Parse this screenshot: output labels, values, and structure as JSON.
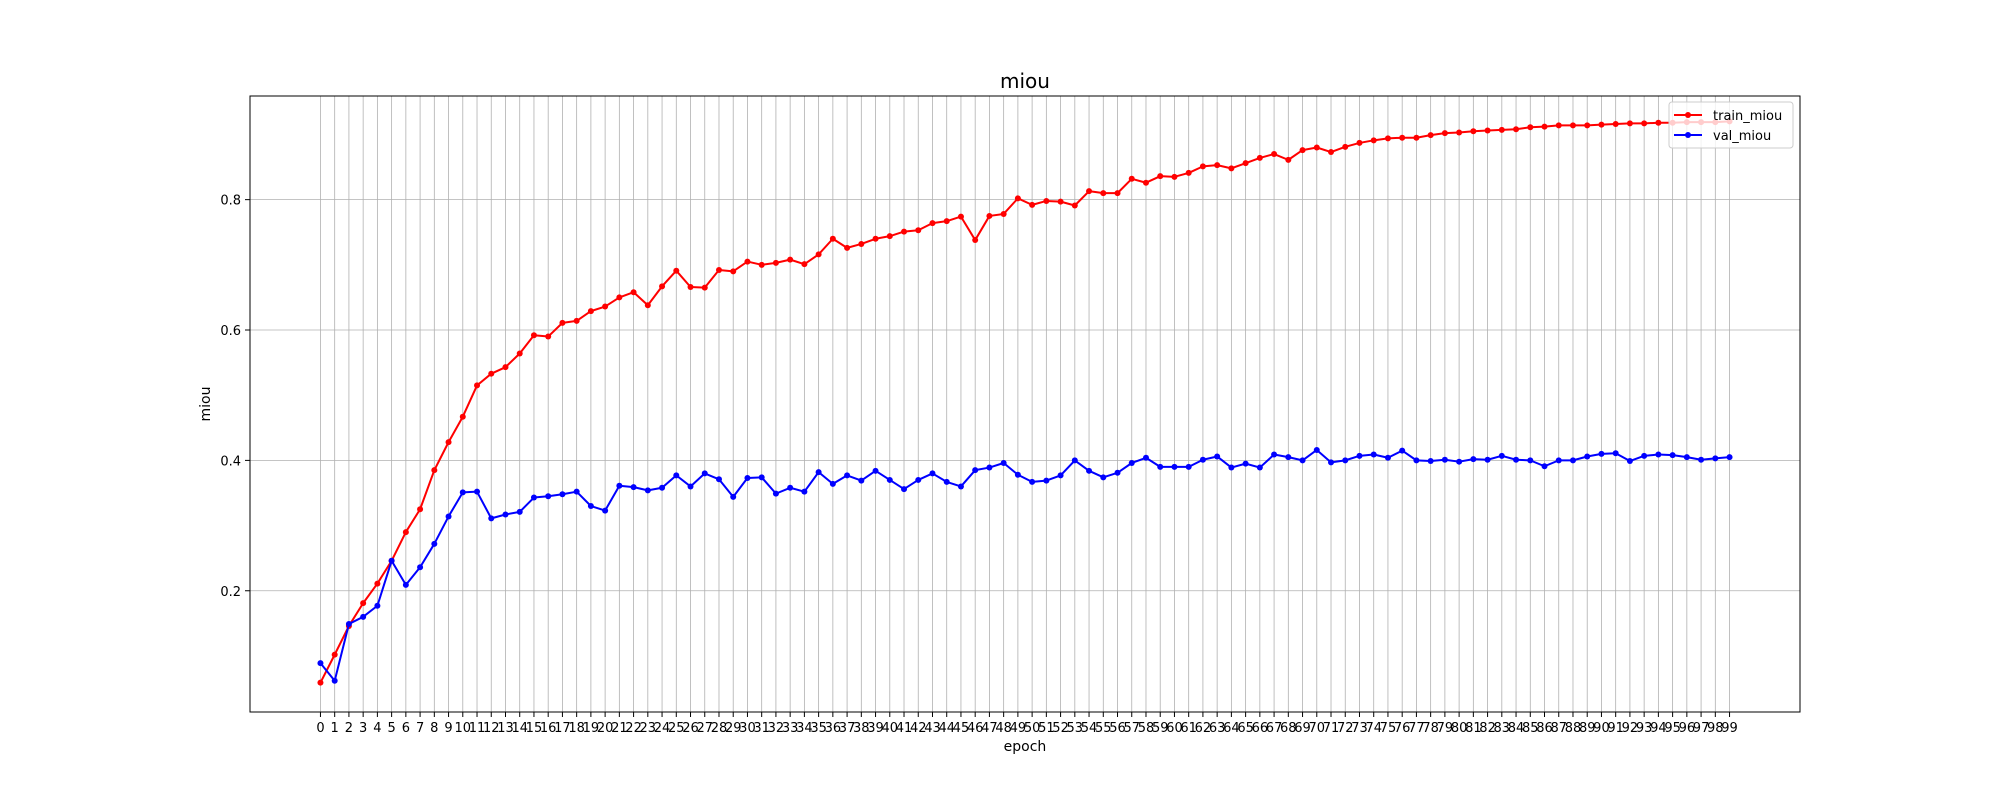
{
  "chart_data": {
    "type": "line",
    "title": "miou",
    "xlabel": "epoch",
    "ylabel": "miou",
    "x": [
      0,
      1,
      2,
      3,
      4,
      5,
      6,
      7,
      8,
      9,
      10,
      11,
      12,
      13,
      14,
      15,
      16,
      17,
      18,
      19,
      20,
      21,
      22,
      23,
      24,
      25,
      26,
      27,
      28,
      29,
      30,
      31,
      32,
      33,
      34,
      35,
      36,
      37,
      38,
      39,
      40,
      41,
      42,
      43,
      44,
      45,
      46,
      47,
      48,
      49,
      50,
      51,
      52,
      53,
      54,
      55,
      56,
      57,
      58,
      59,
      60,
      61,
      62,
      63,
      64,
      65,
      66,
      67,
      68,
      69,
      70,
      71,
      72,
      73,
      74,
      75,
      76,
      77,
      78,
      79,
      80,
      81,
      82,
      83,
      84,
      85,
      86,
      87,
      88,
      89,
      90,
      91,
      92,
      93,
      94,
      95,
      96,
      97,
      98,
      99
    ],
    "xticks": [
      "0",
      "1",
      "2",
      "3",
      "4",
      "5",
      "6",
      "7",
      "8",
      "9",
      "10",
      "11",
      "12",
      "13",
      "14",
      "15",
      "16",
      "17",
      "18",
      "19",
      "20",
      "21",
      "22",
      "23",
      "24",
      "25",
      "26",
      "27",
      "28",
      "29",
      "30",
      "31",
      "32",
      "33",
      "34",
      "35",
      "36",
      "37",
      "38",
      "39",
      "40",
      "41",
      "42",
      "43",
      "44",
      "45",
      "46",
      "47",
      "48",
      "49",
      "50",
      "51",
      "52",
      "53",
      "54",
      "55",
      "56",
      "57",
      "58",
      "59",
      "60",
      "61",
      "62",
      "63",
      "64",
      "65",
      "66",
      "67",
      "68",
      "69",
      "70",
      "71",
      "72",
      "73",
      "74",
      "75",
      "76",
      "77",
      "78",
      "79",
      "80",
      "81",
      "82",
      "83",
      "84",
      "85",
      "86",
      "87",
      "88",
      "89",
      "90",
      "91",
      "92",
      "93",
      "94",
      "95",
      "96",
      "97",
      "98",
      "99"
    ],
    "xlim": [
      -4.95,
      103.95
    ],
    "ylim": [
      0.014,
      0.959
    ],
    "yticks": [
      0.2,
      0.4,
      0.6,
      0.8
    ],
    "ytick_labels": [
      "0.2",
      "0.4",
      "0.6",
      "0.8"
    ],
    "grid": true,
    "legend_position": "top-right",
    "series": [
      {
        "name": "train_miou",
        "color": "#ff0000",
        "values": [
          0.059,
          0.102,
          0.146,
          0.181,
          0.211,
          0.246,
          0.29,
          0.325,
          0.385,
          0.428,
          0.467,
          0.515,
          0.533,
          0.543,
          0.564,
          0.592,
          0.59,
          0.611,
          0.614,
          0.629,
          0.636,
          0.65,
          0.658,
          0.638,
          0.667,
          0.691,
          0.666,
          0.665,
          0.692,
          0.69,
          0.705,
          0.7,
          0.703,
          0.708,
          0.701,
          0.716,
          0.74,
          0.726,
          0.732,
          0.74,
          0.744,
          0.751,
          0.753,
          0.764,
          0.767,
          0.774,
          0.738,
          0.775,
          0.778,
          0.802,
          0.792,
          0.798,
          0.797,
          0.791,
          0.813,
          0.81,
          0.81,
          0.832,
          0.826,
          0.836,
          0.835,
          0.841,
          0.851,
          0.853,
          0.848,
          0.856,
          0.864,
          0.87,
          0.861,
          0.876,
          0.88,
          0.873,
          0.881,
          0.887,
          0.891,
          0.894,
          0.895,
          0.895,
          0.899,
          0.902,
          0.903,
          0.905,
          0.906,
          0.907,
          0.908,
          0.911,
          0.912,
          0.914,
          0.914,
          0.914,
          0.915,
          0.916,
          0.917,
          0.917,
          0.918,
          0.918,
          0.919,
          0.919,
          0.919,
          0.92
        ]
      },
      {
        "name": "val_miou",
        "color": "#0000ff",
        "values": [
          0.089,
          0.062,
          0.149,
          0.16,
          0.177,
          0.246,
          0.209,
          0.236,
          0.272,
          0.314,
          0.351,
          0.352,
          0.311,
          0.317,
          0.321,
          0.343,
          0.345,
          0.348,
          0.352,
          0.33,
          0.323,
          0.361,
          0.359,
          0.354,
          0.358,
          0.377,
          0.36,
          0.38,
          0.371,
          0.344,
          0.373,
          0.374,
          0.349,
          0.358,
          0.352,
          0.382,
          0.364,
          0.377,
          0.369,
          0.384,
          0.37,
          0.356,
          0.37,
          0.38,
          0.367,
          0.36,
          0.385,
          0.389,
          0.396,
          0.378,
          0.367,
          0.369,
          0.377,
          0.4,
          0.384,
          0.374,
          0.381,
          0.396,
          0.404,
          0.39,
          0.39,
          0.39,
          0.401,
          0.406,
          0.389,
          0.395,
          0.389,
          0.409,
          0.405,
          0.4,
          0.416,
          0.397,
          0.4,
          0.407,
          0.409,
          0.404,
          0.415,
          0.4,
          0.399,
          0.401,
          0.398,
          0.402,
          0.401,
          0.407,
          0.401,
          0.4,
          0.391,
          0.4,
          0.4,
          0.406,
          0.41,
          0.411,
          0.399,
          0.407,
          0.409,
          0.408,
          0.405,
          0.401,
          0.403,
          0.405
        ]
      }
    ]
  }
}
